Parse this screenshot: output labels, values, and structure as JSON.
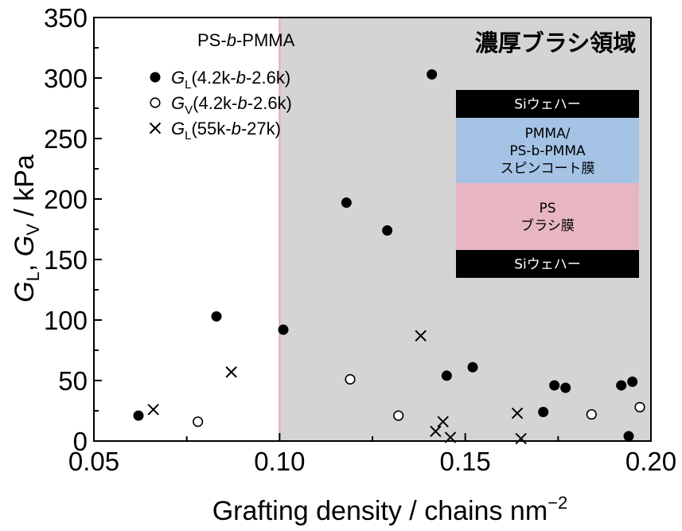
{
  "chart_data": {
    "type": "scatter",
    "xlabel": "Grafting density / chains nm",
    "xlabel_sup": "−2",
    "ylabel_parts": {
      "g1": "G",
      "s1": "L",
      "sep": ", ",
      "g2": "G",
      "s2": "V",
      "unit": " / kPa"
    },
    "xlim": [
      0.05,
      0.2
    ],
    "ylim": [
      0,
      350
    ],
    "xticks": [
      "0.05",
      "0.10",
      "0.15",
      "0.20"
    ],
    "yticks": [
      "0",
      "50",
      "100",
      "150",
      "200",
      "250",
      "300",
      "350"
    ],
    "region": {
      "label": "濃厚ブラシ領域",
      "x_start": 0.1,
      "x_end": 0.2,
      "color": "#d6d3d4",
      "edge_color": "#e8a7b5"
    },
    "legend": {
      "title": "PS-b-PMMA",
      "title_parts": {
        "a": "PS-",
        "b": "b",
        "c": "-PMMA"
      },
      "entries": [
        {
          "marker": "filled-circle",
          "G": "G",
          "sub": "L",
          "p1": "(4.2k-",
          "it": "b",
          "p2": "-2.6k)"
        },
        {
          "marker": "open-circle",
          "G": "G",
          "sub": "V",
          "p1": "(4.2k-",
          "it": "b",
          "p2": "-2.6k)"
        },
        {
          "marker": "cross",
          "G": "G",
          "sub": "L",
          "p1": "(55k-",
          "it": "b",
          "p2": "-27k)"
        }
      ]
    },
    "series": [
      {
        "name": "GL(4.2k-b-2.6k)",
        "marker": "filled-circle",
        "points": [
          [
            0.062,
            21
          ],
          [
            0.083,
            103
          ],
          [
            0.101,
            92
          ],
          [
            0.118,
            197
          ],
          [
            0.129,
            174
          ],
          [
            0.141,
            303
          ],
          [
            0.145,
            54
          ],
          [
            0.152,
            61
          ],
          [
            0.171,
            24
          ],
          [
            0.174,
            46
          ],
          [
            0.177,
            44
          ],
          [
            0.192,
            46
          ],
          [
            0.194,
            4
          ],
          [
            0.195,
            49
          ]
        ]
      },
      {
        "name": "GV(4.2k-b-2.6k)",
        "marker": "open-circle",
        "points": [
          [
            0.078,
            16
          ],
          [
            0.119,
            51
          ],
          [
            0.132,
            21
          ],
          [
            0.184,
            22
          ],
          [
            0.197,
            28
          ]
        ]
      },
      {
        "name": "GL(55k-27k)",
        "marker": "cross",
        "points": [
          [
            0.066,
            26
          ],
          [
            0.087,
            57
          ],
          [
            0.138,
            87
          ],
          [
            0.142,
            8
          ],
          [
            0.144,
            16
          ],
          [
            0.146,
            3
          ],
          [
            0.164,
            23
          ],
          [
            0.165,
            2
          ]
        ]
      }
    ]
  },
  "inset": {
    "layers": [
      {
        "text": [
          "Siウェハー"
        ],
        "bg": "#000000",
        "fg": "#ffffff"
      },
      {
        "text": [
          "PMMA/",
          "PS-b-PMMA",
          "スピンコート膜"
        ],
        "bg": "#a4c3e5",
        "fg": "#000000"
      },
      {
        "text": [
          "PS",
          "ブラシ膜"
        ],
        "bg": "#e8b6c3",
        "fg": "#000000"
      },
      {
        "text": [
          "Siウェハー"
        ],
        "bg": "#000000",
        "fg": "#ffffff"
      }
    ]
  }
}
